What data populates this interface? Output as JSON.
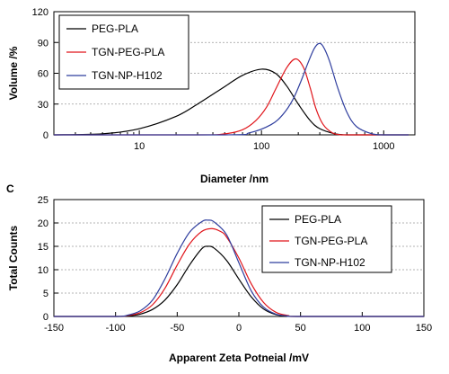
{
  "chart_data": [
    {
      "type": "line",
      "panel_label": "",
      "title": "",
      "xlabel": "Diameter /nm",
      "ylabel": "Volume /%",
      "x_scale": "log",
      "xlim": [
        2,
        1800
      ],
      "ylim": [
        0,
        120
      ],
      "x_ticks": [
        10,
        100,
        1000
      ],
      "x_tick_labels": [
        "10",
        "100",
        "1000"
      ],
      "y_ticks": [
        0,
        30,
        60,
        90,
        120
      ],
      "y_tick_labels": [
        "0",
        "30",
        "60",
        "90",
        "120"
      ],
      "grid": "horizontal dashed",
      "legend_position": "top-left",
      "series": [
        {
          "name": "PEG-PLA",
          "color": "#000000",
          "x": [
            2,
            5,
            10,
            20,
            30,
            50,
            70,
            100,
            130,
            160,
            200,
            250,
            300,
            400,
            500,
            800,
            1000,
            1600
          ],
          "y": [
            0,
            1,
            6,
            18,
            30,
            47,
            58,
            64,
            60,
            48,
            30,
            14,
            6,
            1,
            0,
            0,
            0,
            0
          ]
        },
        {
          "name": "TGN-PEG-PLA",
          "color": "#e0151b",
          "x": [
            2,
            30,
            50,
            70,
            90,
            110,
            130,
            160,
            190,
            220,
            250,
            280,
            320,
            380,
            450,
            600,
            1600
          ],
          "y": [
            0,
            0,
            1,
            5,
            14,
            27,
            44,
            65,
            74,
            66,
            46,
            25,
            10,
            2,
            0,
            0,
            0
          ]
        },
        {
          "name": "TGN-NP-H102",
          "color": "#2f3e9e",
          "x": [
            2,
            50,
            80,
            120,
            150,
            180,
            210,
            240,
            270,
            295,
            320,
            360,
            420,
            500,
            600,
            800,
            1000,
            1600
          ],
          "y": [
            0,
            0,
            2,
            10,
            20,
            34,
            52,
            70,
            84,
            89,
            86,
            72,
            46,
            22,
            8,
            1,
            0,
            0
          ]
        }
      ]
    },
    {
      "type": "line",
      "panel_label": "C",
      "title": "",
      "xlabel": "Apparent Zeta Potneial /mV",
      "ylabel": "Total Counts",
      "xlim": [
        -150,
        150
      ],
      "ylim": [
        0,
        25
      ],
      "x_ticks": [
        -150,
        -100,
        -50,
        0,
        50,
        100,
        150
      ],
      "x_tick_labels": [
        "-150",
        "-100",
        "-50",
        "0",
        "50",
        "100",
        "150"
      ],
      "y_ticks": [
        0,
        5,
        10,
        15,
        20,
        25
      ],
      "y_tick_labels": [
        "0",
        "5",
        "10",
        "15",
        "20",
        "25"
      ],
      "grid": "horizontal dashed",
      "legend_position": "top-right",
      "series": [
        {
          "name": "PEG-PLA",
          "color": "#000000",
          "x": [
            -150,
            -100,
            -90,
            -80,
            -70,
            -60,
            -50,
            -40,
            -30,
            -25,
            -20,
            -10,
            0,
            10,
            20,
            30,
            40,
            50,
            150
          ],
          "y": [
            0,
            0,
            0.1,
            0.5,
            1.5,
            3.5,
            6.8,
            11,
            14.5,
            15,
            14.6,
            12,
            8,
            4.2,
            1.6,
            0.4,
            0.1,
            0,
            0
          ]
        },
        {
          "name": "TGN-PEG-PLA",
          "color": "#e0151b",
          "x": [
            -150,
            -100,
            -90,
            -80,
            -70,
            -60,
            -50,
            -40,
            -30,
            -22,
            -15,
            -10,
            0,
            10,
            20,
            30,
            40,
            50,
            150
          ],
          "y": [
            0,
            0,
            0.2,
            0.8,
            2.5,
            6,
            11,
            15.5,
            18.2,
            18.8,
            18.2,
            17,
            12.5,
            7,
            3,
            0.9,
            0.2,
            0,
            0
          ]
        },
        {
          "name": "TGN-NP-H102",
          "color": "#2f3e9e",
          "x": [
            -150,
            -100,
            -90,
            -80,
            -70,
            -60,
            -50,
            -40,
            -30,
            -25,
            -20,
            -10,
            0,
            10,
            20,
            30,
            40,
            50,
            150
          ],
          "y": [
            0,
            0,
            0.3,
            1.2,
            3.5,
            8,
            13.5,
            18,
            20.3,
            20.6,
            20.2,
            17.5,
            11.5,
            5.5,
            2,
            0.5,
            0.1,
            0,
            0
          ]
        }
      ]
    }
  ]
}
